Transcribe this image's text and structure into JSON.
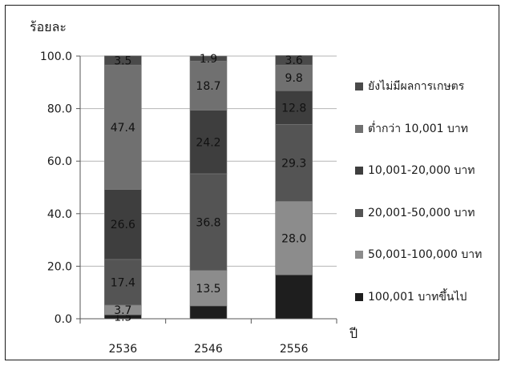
{
  "chart_data": {
    "type": "bar",
    "stacked": true,
    "ylabel": "ร้อยละ",
    "xlabel": "ปี",
    "ylim": [
      0,
      100
    ],
    "yticks": [
      "0.0",
      "20.0",
      "40.0",
      "60.0",
      "80.0",
      "100.0"
    ],
    "categories": [
      "2536",
      "2546",
      "2556"
    ],
    "series": [
      {
        "name": "100,001 บาทขึ้นไป",
        "color": "#1e1e1e",
        "values": [
          1.5,
          4.9,
          16.7
        ],
        "labels": [
          "1.5",
          "",
          ""
        ]
      },
      {
        "name": "50,001-100,000 บาท",
        "color": "#8c8c8c",
        "values": [
          3.7,
          13.5,
          28.0
        ],
        "labels": [
          "3.7",
          "13.5",
          "28.0"
        ]
      },
      {
        "name": "20,001-50,000 บาท",
        "color": "#545454",
        "values": [
          17.4,
          36.8,
          29.3
        ],
        "labels": [
          "17.4",
          "36.8",
          "29.3"
        ]
      },
      {
        "name": "10,001-20,000 บาท",
        "color": "#3e3e3e",
        "values": [
          26.6,
          24.2,
          12.8
        ],
        "labels": [
          "26.6",
          "24.2",
          "12.8"
        ]
      },
      {
        "name": "ต่ำกว่า 10,001 บาท",
        "color": "#707070",
        "values": [
          47.4,
          18.7,
          9.8
        ],
        "labels": [
          "47.4",
          "18.7",
          "9.8"
        ]
      },
      {
        "name": "ยังไม่มีผลการเกษตร",
        "color": "#4a4a4a",
        "values": [
          3.5,
          1.9,
          3.6
        ],
        "labels": [
          "3.5",
          "1.9",
          "3.6"
        ]
      }
    ],
    "grid": true,
    "legend": "right"
  }
}
